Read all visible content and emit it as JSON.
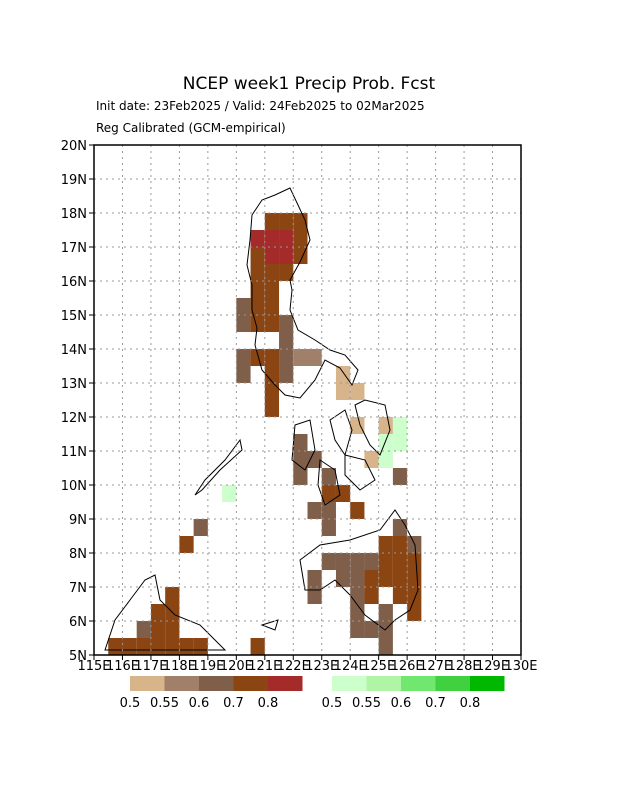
{
  "chart_data": {
    "type": "gridmap",
    "title": "NCEP week1 Precip Prob. Fcst",
    "subtitle": "Init date: 23Feb2025 / Valid: 24Feb2025 to 02Mar2025",
    "subtitle2": "Reg Calibrated (GCM-empirical)",
    "xlim": [
      115,
      130
    ],
    "ylim": [
      5,
      20
    ],
    "cell": 0.5,
    "grid": true,
    "xticks": [
      {
        "value": 115,
        "label": "115E"
      },
      {
        "value": 116,
        "label": "116E"
      },
      {
        "value": 117,
        "label": "117E"
      },
      {
        "value": 118,
        "label": "118E"
      },
      {
        "value": 119,
        "label": "119E"
      },
      {
        "value": 120,
        "label": "120E"
      },
      {
        "value": 121,
        "label": "121E"
      },
      {
        "value": 122,
        "label": "122E"
      },
      {
        "value": 123,
        "label": "123E"
      },
      {
        "value": 124,
        "label": "124E"
      },
      {
        "value": 125,
        "label": "125E"
      },
      {
        "value": 126,
        "label": "126E"
      },
      {
        "value": 127,
        "label": "127E"
      },
      {
        "value": 128,
        "label": "128E"
      },
      {
        "value": 129,
        "label": "129E"
      },
      {
        "value": 130,
        "label": "130E"
      }
    ],
    "yticks": [
      {
        "value": 5,
        "label": "5N"
      },
      {
        "value": 6,
        "label": "6N"
      },
      {
        "value": 7,
        "label": "7N"
      },
      {
        "value": 8,
        "label": "8N"
      },
      {
        "value": 9,
        "label": "9N"
      },
      {
        "value": 10,
        "label": "10N"
      },
      {
        "value": 11,
        "label": "11N"
      },
      {
        "value": 12,
        "label": "12N"
      },
      {
        "value": 13,
        "label": "13N"
      },
      {
        "value": 14,
        "label": "14N"
      },
      {
        "value": 15,
        "label": "15N"
      },
      {
        "value": 16,
        "label": "16N"
      },
      {
        "value": 17,
        "label": "17N"
      },
      {
        "value": 18,
        "label": "18N"
      },
      {
        "value": 19,
        "label": "19N"
      },
      {
        "value": 20,
        "label": "20N"
      }
    ],
    "legend": [
      {
        "colors": [
          "#d7b48a",
          "#a08068",
          "#7f5f4a",
          "#8b4513",
          "#a52a2a"
        ],
        "labels": [
          "0.5",
          "0.55",
          "0.6",
          "0.7",
          "0.8"
        ]
      },
      {
        "colors": [
          "#ccffcc",
          "#b0f5a5",
          "#70e870",
          "#40d040",
          "#00b800"
        ],
        "labels": [
          "0.5",
          "0.55",
          "0.6",
          "0.7",
          "0.8"
        ]
      }
    ],
    "cells": [
      [
        121,
        17.5,
        3
      ],
      [
        121.5,
        17.5,
        3
      ],
      [
        122,
        17.5,
        3
      ],
      [
        120.5,
        17,
        4
      ],
      [
        121,
        17,
        4
      ],
      [
        121.5,
        17,
        4
      ],
      [
        122,
        17,
        3
      ],
      [
        120.5,
        16.5,
        3
      ],
      [
        121,
        16.5,
        4
      ],
      [
        121.5,
        16.5,
        4
      ],
      [
        122,
        16.5,
        3
      ],
      [
        120.5,
        16,
        3
      ],
      [
        121,
        16,
        3
      ],
      [
        121.5,
        16,
        3
      ],
      [
        120.5,
        15.5,
        3
      ],
      [
        121,
        15.5,
        3
      ],
      [
        120,
        15,
        2
      ],
      [
        120.5,
        15,
        3
      ],
      [
        121,
        15,
        3
      ],
      [
        120,
        14.5,
        2
      ],
      [
        120.5,
        14.5,
        3
      ],
      [
        121,
        14.5,
        3
      ],
      [
        121.5,
        14.5,
        2
      ],
      [
        121.5,
        14,
        2
      ],
      [
        120,
        13.5,
        2
      ],
      [
        120.5,
        13.5,
        3
      ],
      [
        121,
        13.5,
        3
      ],
      [
        121.5,
        13.5,
        2
      ],
      [
        122,
        13.5,
        1
      ],
      [
        122.5,
        13.5,
        1
      ],
      [
        120,
        13,
        2
      ],
      [
        121,
        13,
        3
      ],
      [
        121.5,
        13,
        2
      ],
      [
        123.5,
        13,
        0
      ],
      [
        121,
        12.5,
        3
      ],
      [
        123.5,
        12.5,
        0
      ],
      [
        124,
        12.5,
        0
      ],
      [
        121,
        12,
        3
      ],
      [
        124,
        11.5,
        0
      ],
      [
        125,
        11.5,
        0
      ],
      [
        125.5,
        11.5,
        5
      ],
      [
        122,
        11,
        2
      ],
      [
        125,
        11,
        5
      ],
      [
        125.5,
        11,
        5
      ],
      [
        122,
        10.5,
        2
      ],
      [
        122.5,
        10.5,
        2
      ],
      [
        124.5,
        10.5,
        0
      ],
      [
        125,
        10.5,
        5
      ],
      [
        122,
        10,
        2
      ],
      [
        123,
        10,
        2
      ],
      [
        125.5,
        10,
        2
      ],
      [
        119.5,
        9.5,
        5
      ],
      [
        123,
        9.5,
        3
      ],
      [
        123.5,
        9.5,
        3
      ],
      [
        122.5,
        9,
        2
      ],
      [
        123,
        9,
        2
      ],
      [
        124,
        9,
        3
      ],
      [
        118.5,
        8.5,
        2
      ],
      [
        123,
        8.5,
        2
      ],
      [
        125.5,
        8.5,
        2
      ],
      [
        118,
        8,
        3
      ],
      [
        125,
        8,
        3
      ],
      [
        125.5,
        8,
        3
      ],
      [
        126,
        8,
        2
      ],
      [
        123,
        7.5,
        2
      ],
      [
        123.5,
        7.5,
        2
      ],
      [
        124,
        7.5,
        2
      ],
      [
        124.5,
        7.5,
        2
      ],
      [
        125,
        7.5,
        3
      ],
      [
        125.5,
        7.5,
        3
      ],
      [
        126,
        7.5,
        3
      ],
      [
        122.5,
        7,
        2
      ],
      [
        123.5,
        7,
        2
      ],
      [
        124,
        7,
        2
      ],
      [
        124.5,
        7,
        3
      ],
      [
        125,
        7,
        3
      ],
      [
        125.5,
        7,
        3
      ],
      [
        126,
        7,
        3
      ],
      [
        117.5,
        6.5,
        3
      ],
      [
        122.5,
        6.5,
        2
      ],
      [
        124,
        6.5,
        2
      ],
      [
        124.5,
        6.5,
        3
      ],
      [
        125.5,
        6.5,
        3
      ],
      [
        126,
        6.5,
        3
      ],
      [
        117,
        6,
        3
      ],
      [
        117.5,
        6,
        3
      ],
      [
        124,
        6,
        2
      ],
      [
        125,
        6,
        2
      ],
      [
        126,
        6,
        3
      ],
      [
        116.5,
        5.5,
        2
      ],
      [
        117,
        5.5,
        3
      ],
      [
        117.5,
        5.5,
        3
      ],
      [
        124,
        5.5,
        2
      ],
      [
        124.5,
        5.5,
        2
      ],
      [
        125,
        5.5,
        2
      ],
      [
        115.5,
        5,
        3
      ],
      [
        116,
        5,
        3
      ],
      [
        116.5,
        5,
        3
      ],
      [
        117,
        5,
        3
      ],
      [
        117.5,
        5,
        3
      ],
      [
        118,
        5,
        3
      ],
      [
        118.5,
        5,
        3
      ],
      [
        120.5,
        5,
        3
      ],
      [
        125,
        5,
        2
      ]
    ]
  }
}
